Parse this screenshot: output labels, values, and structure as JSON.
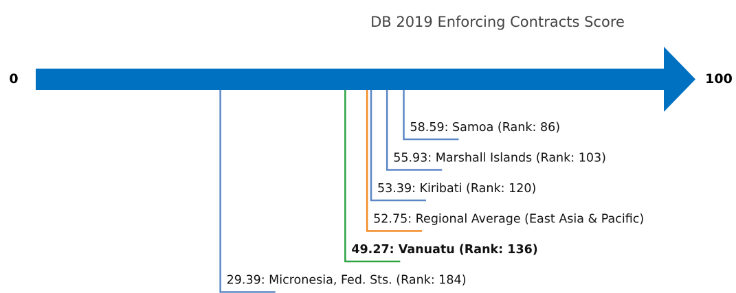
{
  "chart_data": {
    "type": "number-line",
    "title": "DB 2019 Enforcing Contracts Score",
    "xlim": [
      0,
      100
    ],
    "xticks": [
      0,
      100
    ],
    "axis_color": "#0070c0",
    "values": [
      58.59,
      55.93,
      53.39,
      52.75,
      49.27,
      29.39
    ],
    "value_labels": [
      "58.59: Samoa (Rank: 86)",
      "55.93: Marshall Islands (Rank: 103)",
      "53.39: Kiribati (Rank: 120)",
      "52.75: Regional Average (East Asia & Pacific)",
      "49.27: Vanuatu (Rank: 136)",
      "29.39: Micronesia, Fed. Sts. (Rank: 184)"
    ],
    "colors": [
      "#5b87c5",
      "#5b87c5",
      "#5b87c5",
      "#f28a22",
      "#2ca443",
      "#5b87c5"
    ],
    "bold": [
      false,
      false,
      false,
      false,
      true,
      false
    ]
  }
}
